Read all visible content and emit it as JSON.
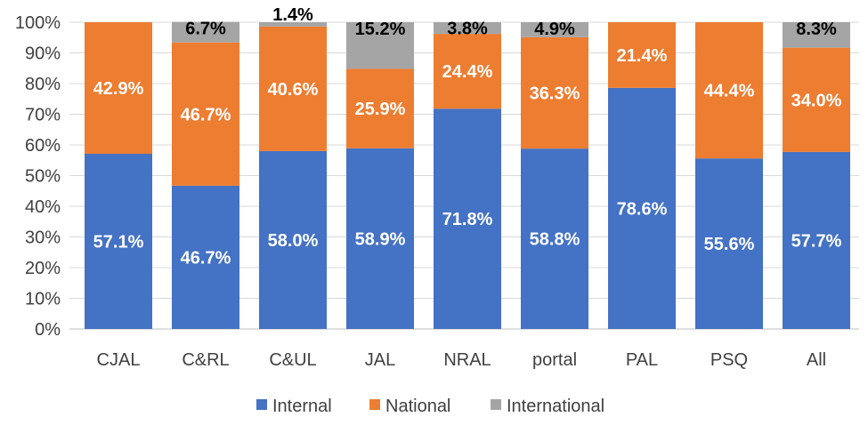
{
  "chart_data": {
    "type": "bar",
    "stacked": true,
    "percent": true,
    "categories": [
      "CJAL",
      "C&RL",
      "C&UL",
      "JAL",
      "NRAL",
      "portal",
      "PAL",
      "PSQ",
      "All"
    ],
    "series": [
      {
        "name": "Internal",
        "color": "#4472c4",
        "values": [
          57.1,
          46.7,
          58.0,
          58.9,
          71.8,
          58.8,
          78.6,
          55.6,
          57.7
        ]
      },
      {
        "name": "National",
        "color": "#ed7d31",
        "values": [
          42.9,
          46.7,
          40.6,
          25.9,
          24.4,
          36.3,
          21.4,
          44.4,
          34.0
        ]
      },
      {
        "name": "International",
        "color": "#a5a5a5",
        "values": [
          0,
          6.7,
          1.4,
          15.2,
          3.8,
          4.9,
          0,
          0,
          8.3
        ]
      }
    ],
    "data_labels": [
      [
        "57.1%",
        "46.7%",
        "58.0%",
        "58.9%",
        "71.8%",
        "58.8%",
        "78.6%",
        "55.6%",
        "57.7%"
      ],
      [
        "42.9%",
        "46.7%",
        "40.6%",
        "25.9%",
        "24.4%",
        "36.3%",
        "21.4%",
        "44.4%",
        "34.0%"
      ],
      [
        "",
        "6.7%",
        "1.4%",
        "15.2%",
        "3.8%",
        "4.9%",
        "",
        "",
        "8.3%"
      ]
    ],
    "yticks": [
      "0%",
      "10%",
      "20%",
      "30%",
      "40%",
      "50%",
      "60%",
      "70%",
      "80%",
      "90%",
      "100%"
    ],
    "ylim": [
      0,
      100
    ],
    "grid": true,
    "legend_position": "bottom"
  }
}
